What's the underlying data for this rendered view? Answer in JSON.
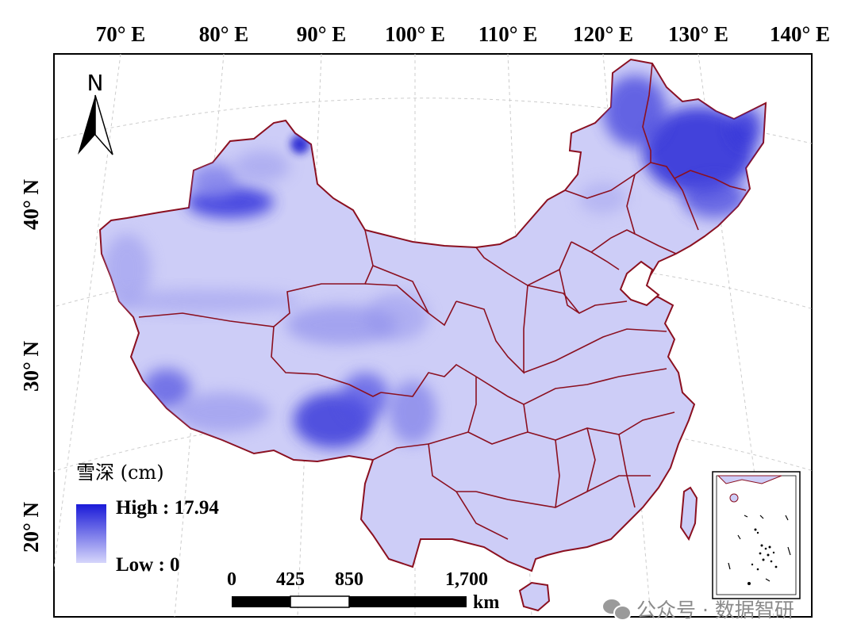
{
  "map": {
    "lon_labels": [
      "70° E",
      "80° E",
      "90° E",
      "100° E",
      "110° E",
      "120° E",
      "130° E",
      "140° E"
    ],
    "lat_labels": [
      "40° N",
      "30° N",
      "20° N"
    ],
    "north_arrow": {
      "label": "N",
      "icon": "north-arrow-icon"
    },
    "legend": {
      "title": "雪深 (cm)",
      "high_label": "High : 17.94",
      "low_label": "Low : 0",
      "high_value": 17.94,
      "low_value": 0,
      "high_color": "#1a1ad8",
      "low_color": "#d6d6fb"
    },
    "scale_bar": {
      "ticks": [
        "0",
        "425",
        "850",
        "1,700"
      ],
      "unit": "km"
    },
    "colors": {
      "base_fill": "#cdcdf7",
      "boundary": "#8b1020",
      "graticule": "#c8c8c8"
    }
  },
  "watermark": {
    "icon": "wechat-icon",
    "text": "公众号 · 数据智研"
  }
}
